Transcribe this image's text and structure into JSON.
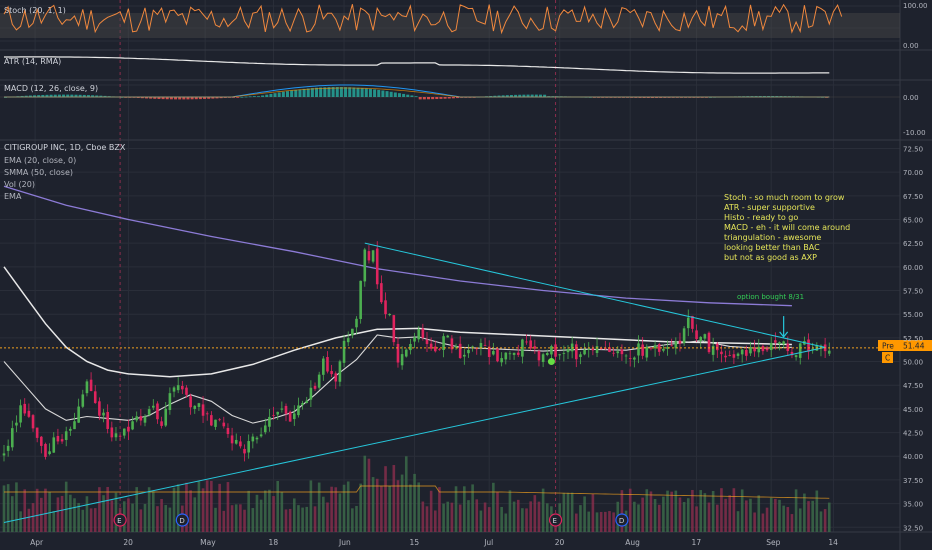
{
  "colors": {
    "background": "#1e222d",
    "grid": "#2a2e39",
    "text": "#d1d4dc",
    "axis_text": "#b2b5be",
    "up": "#4caf50",
    "down": "#e0245e",
    "vol_up": "#3c6e4a",
    "vol_down": "#8a2e4c",
    "stoch": "#f0883e",
    "stoch_band": "#4a4a4a",
    "atr": "#e8e8e8",
    "macd": "#2196f3",
    "signal": "#ff9800",
    "ema20": "#d8d8d8",
    "smma50": "#8c7bd6",
    "trendline": "#26c6da",
    "annotation": "#e6e65a",
    "option_label": "#33cc55",
    "price_line": "#f0a020",
    "pre_badge": "#ff9800"
  },
  "panes": {
    "stoch": {
      "label": "Stoch (20, 1, 1)",
      "ticks": [
        "100.00",
        "0.00"
      ]
    },
    "atr": {
      "label": "ATR (14, RMA)"
    },
    "macd": {
      "label": "MACD (12, 26, close, 9)",
      "ticks": [
        "0.00",
        "-10.00"
      ]
    },
    "main": {
      "title": "CITIGROUP INC, 1D, Cboe BZX",
      "indicators": [
        "EMA (20, close, 0)",
        "SMMA (50, close)",
        "Vol (20)",
        "EMA"
      ]
    }
  },
  "price_badge": {
    "tag": "Pre",
    "value": "51.44",
    "extra": "C"
  },
  "annotation": {
    "lines": [
      "Stoch - so much room to grow",
      "ATR - super supportive",
      "Histo - ready to go",
      "MACD - eh - it will come around",
      "triangulation - awesome",
      "looking better than BAC",
      "but not as good as AXP"
    ],
    "option_label": "option bought 8/31"
  },
  "events": [
    {
      "label": "E",
      "x_value": 28
    },
    {
      "label": "D",
      "x_value": 43
    },
    {
      "label": "E",
      "x_value": 133
    },
    {
      "label": "D",
      "x_value": 149
    }
  ],
  "chart_data": {
    "type": "candlestick",
    "title": "CITIGROUP INC, 1D, Cboe BZX",
    "x_unit": "trading day index (0 = first bar)",
    "x_ticks": [
      {
        "label": "Apr",
        "x": 7.5
      },
      {
        "label": "20",
        "x": 30
      },
      {
        "label": "May",
        "x": 48.5
      },
      {
        "label": "18",
        "x": 65
      },
      {
        "label": "Jun",
        "x": 82
      },
      {
        "label": "15",
        "x": 99
      },
      {
        "label": "Jul",
        "x": 117
      },
      {
        "label": "20",
        "x": 134
      },
      {
        "label": "Aug",
        "x": 151
      },
      {
        "label": "17",
        "x": 167
      },
      {
        "label": "Sep",
        "x": 185
      },
      {
        "label": "14",
        "x": 200
      }
    ],
    "price_ticks": [
      "72.50",
      "70.00",
      "67.50",
      "65.00",
      "62.50",
      "60.00",
      "57.50",
      "55.00",
      "52.50",
      "50.00",
      "47.50",
      "45.00",
      "42.50",
      "40.00",
      "37.50",
      "35.00",
      "32.50"
    ],
    "ylim": [
      32,
      73.5
    ],
    "last_price": 51.44,
    "price_points": [
      {
        "x": 0,
        "v": 40
      },
      {
        "x": 4,
        "v": 45
      },
      {
        "x": 10,
        "v": 40.5
      },
      {
        "x": 16,
        "v": 43
      },
      {
        "x": 20,
        "v": 48
      },
      {
        "x": 24,
        "v": 44
      },
      {
        "x": 27,
        "v": 42
      },
      {
        "x": 31,
        "v": 43.5
      },
      {
        "x": 35,
        "v": 45
      },
      {
        "x": 38,
        "v": 44
      },
      {
        "x": 41,
        "v": 47.5
      },
      {
        "x": 46,
        "v": 45.5
      },
      {
        "x": 49,
        "v": 44
      },
      {
        "x": 54,
        "v": 42.5
      },
      {
        "x": 58,
        "v": 41
      },
      {
        "x": 62,
        "v": 43
      },
      {
        "x": 65,
        "v": 45
      },
      {
        "x": 69,
        "v": 44
      },
      {
        "x": 73,
        "v": 45.5
      },
      {
        "x": 77,
        "v": 50
      },
      {
        "x": 80,
        "v": 48
      },
      {
        "x": 82,
        "v": 52.5
      },
      {
        "x": 85,
        "v": 54
      },
      {
        "x": 87,
        "v": 61.5
      },
      {
        "x": 89,
        "v": 61
      },
      {
        "x": 91,
        "v": 56.5
      },
      {
        "x": 93,
        "v": 54.5
      },
      {
        "x": 95,
        "v": 49.5
      },
      {
        "x": 98,
        "v": 51.5
      },
      {
        "x": 100,
        "v": 54
      },
      {
        "x": 103,
        "v": 51
      },
      {
        "x": 106,
        "v": 52.5
      },
      {
        "x": 110,
        "v": 50.5
      },
      {
        "x": 114,
        "v": 51.5
      },
      {
        "x": 118,
        "v": 50.5
      },
      {
        "x": 122,
        "v": 51
      },
      {
        "x": 126,
        "v": 52
      },
      {
        "x": 130,
        "v": 50.5
      },
      {
        "x": 134,
        "v": 51.5
      },
      {
        "x": 138,
        "v": 51
      },
      {
        "x": 142,
        "v": 51.5
      },
      {
        "x": 146,
        "v": 50.8
      },
      {
        "x": 150,
        "v": 51
      },
      {
        "x": 154,
        "v": 51.2
      },
      {
        "x": 158,
        "v": 51
      },
      {
        "x": 162,
        "v": 52
      },
      {
        "x": 165,
        "v": 54
      },
      {
        "x": 168,
        "v": 52.5
      },
      {
        "x": 172,
        "v": 51
      },
      {
        "x": 176,
        "v": 50.5
      },
      {
        "x": 180,
        "v": 51.5
      },
      {
        "x": 184,
        "v": 51.6
      },
      {
        "x": 188,
        "v": 51.5
      },
      {
        "x": 190,
        "v": 51.4
      }
    ],
    "ema20": [
      {
        "x": 0,
        "v": 50
      },
      {
        "x": 5,
        "v": 47.5
      },
      {
        "x": 10,
        "v": 45
      },
      {
        "x": 15,
        "v": 43.8
      },
      {
        "x": 20,
        "v": 44.2
      },
      {
        "x": 25,
        "v": 44
      },
      {
        "x": 30,
        "v": 43.8
      },
      {
        "x": 35,
        "v": 44.3
      },
      {
        "x": 40,
        "v": 45.5
      },
      {
        "x": 45,
        "v": 46.5
      },
      {
        "x": 50,
        "v": 45.8
      },
      {
        "x": 55,
        "v": 44.3
      },
      {
        "x": 60,
        "v": 43.5
      },
      {
        "x": 65,
        "v": 44
      },
      {
        "x": 70,
        "v": 44.7
      },
      {
        "x": 75,
        "v": 46.5
      },
      {
        "x": 80,
        "v": 48.5
      },
      {
        "x": 85,
        "v": 50.2
      },
      {
        "x": 90,
        "v": 52.8
      },
      {
        "x": 95,
        "v": 52.5
      },
      {
        "x": 100,
        "v": 52.6
      },
      {
        "x": 105,
        "v": 52
      },
      {
        "x": 110,
        "v": 51.5
      },
      {
        "x": 120,
        "v": 51.3
      },
      {
        "x": 130,
        "v": 51.1
      },
      {
        "x": 140,
        "v": 51.3
      },
      {
        "x": 150,
        "v": 51.2
      },
      {
        "x": 160,
        "v": 51.8
      },
      {
        "x": 168,
        "v": 52.2
      },
      {
        "x": 175,
        "v": 51.6
      },
      {
        "x": 182,
        "v": 51.4
      },
      {
        "x": 190,
        "v": 51.5
      }
    ],
    "sma50": [
      {
        "x": 0,
        "v": 60
      },
      {
        "x": 5,
        "v": 57
      },
      {
        "x": 10,
        "v": 54
      },
      {
        "x": 15,
        "v": 51.5
      },
      {
        "x": 20,
        "v": 50
      },
      {
        "x": 25,
        "v": 49.1
      },
      {
        "x": 30,
        "v": 48.7
      },
      {
        "x": 40,
        "v": 48.4
      },
      {
        "x": 50,
        "v": 48.7
      },
      {
        "x": 60,
        "v": 49.7
      },
      {
        "x": 70,
        "v": 51.2
      },
      {
        "x": 80,
        "v": 52.5
      },
      {
        "x": 90,
        "v": 53.4
      },
      {
        "x": 100,
        "v": 53.5
      },
      {
        "x": 110,
        "v": 53.1
      },
      {
        "x": 120,
        "v": 52.9
      },
      {
        "x": 140,
        "v": 52.5
      },
      {
        "x": 160,
        "v": 52.1
      },
      {
        "x": 180,
        "v": 51.9
      },
      {
        "x": 190,
        "v": 51.8
      }
    ],
    "smma50": [
      {
        "x": 0,
        "v": 68.5
      },
      {
        "x": 15,
        "v": 66.5
      },
      {
        "x": 30,
        "v": 65
      },
      {
        "x": 50,
        "v": 63.2
      },
      {
        "x": 70,
        "v": 61.6
      },
      {
        "x": 90,
        "v": 59.8
      },
      {
        "x": 110,
        "v": 58.5
      },
      {
        "x": 130,
        "v": 57.5
      },
      {
        "x": 150,
        "v": 56.7
      },
      {
        "x": 170,
        "v": 56.2
      },
      {
        "x": 190,
        "v": 55.9
      }
    ],
    "trendlines": [
      {
        "name": "resistance",
        "from": {
          "x": 87,
          "v": 62.5
        },
        "to": {
          "x": 198,
          "v": 51.5
        }
      },
      {
        "name": "support",
        "from": {
          "x": 0,
          "v": 33
        },
        "to": {
          "x": 198,
          "v": 51.5
        }
      }
    ],
    "option_arrow": {
      "x": 188,
      "from_v": 54.8,
      "to_v": 52.6
    },
    "entry_marker": {
      "x": 132,
      "v": 50
    }
  }
}
